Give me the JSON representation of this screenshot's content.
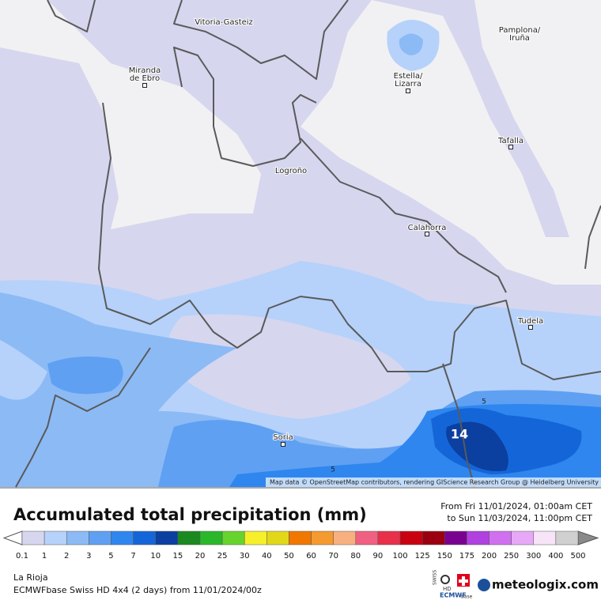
{
  "map": {
    "cities": [
      {
        "lines": [
          "Vitoria-Gasteiz"
        ]
      },
      {
        "lines": [
          "Pamplona/",
          "Iruña"
        ]
      },
      {
        "lines": [
          "Miranda",
          "de Ebro"
        ]
      },
      {
        "lines": [
          "Estella/",
          "Lizarra"
        ]
      },
      {
        "lines": [
          "Tafalla"
        ]
      },
      {
        "lines": [
          "Logroño"
        ]
      },
      {
        "lines": [
          "Calahorra"
        ]
      },
      {
        "lines": [
          "Tudela"
        ]
      },
      {
        "lines": [
          "Soria"
        ]
      }
    ],
    "contour_labels": [
      14,
      5,
      5
    ],
    "attribution": "Map data © OpenStreetMap contributors, rendering GIScience Research Group @ Heidelberg University"
  },
  "header": {
    "title": "Accumulated total precipitation (mm)",
    "period_from": "From Fri 11/01/2024, 01:00am CET",
    "period_to": "to Sun 11/03/2024, 11:00pm CET"
  },
  "legend": {
    "labels": [
      0.1,
      1,
      2,
      3,
      5,
      7,
      10,
      15,
      20,
      25,
      30,
      40,
      50,
      60,
      70,
      80,
      90,
      100,
      125,
      150,
      175,
      200,
      250,
      300,
      400,
      500
    ],
    "colors": [
      "#d6d6ef",
      "#b6d2fa",
      "#8cbaf5",
      "#5fa0f2",
      "#2f86ef",
      "#1466d8",
      "#0b3fa0",
      "#1a8a20",
      "#2ab82a",
      "#66d42c",
      "#f5f02a",
      "#e2d81a",
      "#f07800",
      "#f59a30",
      "#f8b080",
      "#f06080",
      "#e8304a",
      "#c80010",
      "#9a0010",
      "#7a0090",
      "#b040e0",
      "#d070f0",
      "#e8a8f8",
      "#f8e4f8",
      "#d0d0d0"
    ]
  },
  "footer": {
    "region": "La Rioja",
    "model": "ECMWFbase Swiss HD 4x4 (2 days) from  11/01/2024/00z",
    "logo_swiss": "SWISS",
    "logo_hd": "HD",
    "logo_ecmwf": "ECMWF",
    "logo_base": "base",
    "brand": "meteologix.com"
  }
}
